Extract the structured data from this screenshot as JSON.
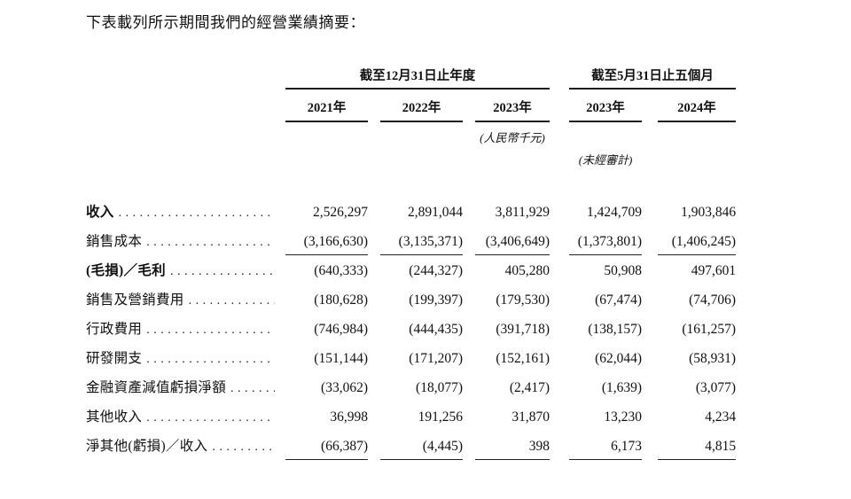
{
  "page": {
    "title": "下表載列所示期間我們的經營業績摘要："
  },
  "table": {
    "period_groups": [
      {
        "label": "截至12月31日止年度"
      },
      {
        "label": "截至5月31日止五個月"
      }
    ],
    "year_headers": [
      "2021年",
      "2022年",
      "2023年",
      "2023年",
      "2024年"
    ],
    "currency_note": "(人民幣千元)",
    "audit_note": "(未經審計)",
    "rows": [
      {
        "label": "收入",
        "bold": true,
        "underline": false,
        "values": [
          "2,526,297",
          "2,891,044",
          "3,811,929",
          "1,424,709",
          "1,903,846"
        ]
      },
      {
        "label": "銷售成本",
        "bold": false,
        "underline": true,
        "values": [
          "(3,166,630)",
          "(3,135,371)",
          "(3,406,649)",
          "(1,373,801)",
          "(1,406,245)"
        ]
      },
      {
        "label": "(毛損)／毛利",
        "bold": true,
        "underline": false,
        "values": [
          "(640,333)",
          "(244,327)",
          "405,280",
          "50,908",
          "497,601"
        ]
      },
      {
        "label": "銷售及營銷費用",
        "bold": false,
        "underline": false,
        "values": [
          "(180,628)",
          "(199,397)",
          "(179,530)",
          "(67,474)",
          "(74,706)"
        ]
      },
      {
        "label": "行政費用",
        "bold": false,
        "underline": false,
        "values": [
          "(746,984)",
          "(444,435)",
          "(391,718)",
          "(138,157)",
          "(161,257)"
        ]
      },
      {
        "label": "研發開支",
        "bold": false,
        "underline": false,
        "values": [
          "(151,144)",
          "(171,207)",
          "(152,161)",
          "(62,044)",
          "(58,931)"
        ]
      },
      {
        "label": "金融資產減值虧損淨額",
        "bold": false,
        "underline": false,
        "values": [
          "(33,062)",
          "(18,077)",
          "(2,417)",
          "(1,639)",
          "(3,077)"
        ]
      },
      {
        "label": "其他收入",
        "bold": false,
        "underline": false,
        "values": [
          "36,998",
          "191,256",
          "31,870",
          "13,230",
          "4,234"
        ]
      },
      {
        "label": "淨其他(虧損)／收入",
        "bold": false,
        "underline": true,
        "values": [
          "(66,387)",
          "(4,445)",
          "398",
          "6,173",
          "4,815"
        ]
      }
    ]
  }
}
